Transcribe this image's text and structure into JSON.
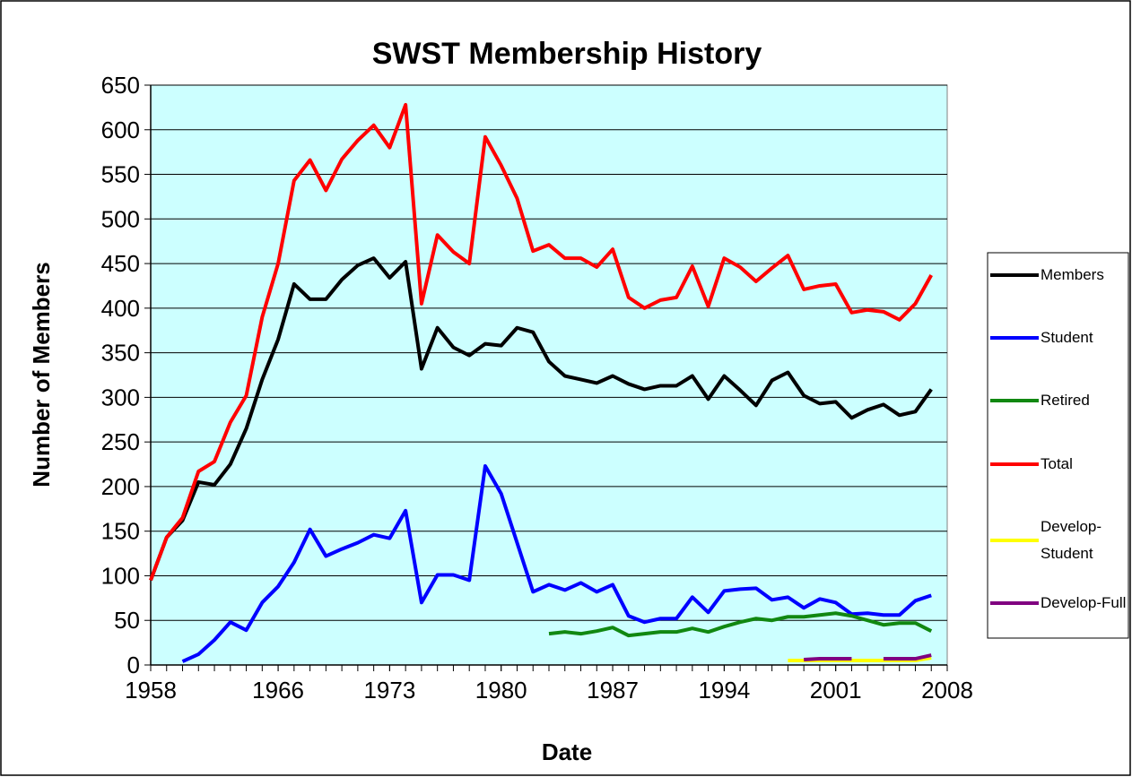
{
  "chart_data": {
    "type": "line",
    "title": "SWST Membership History",
    "x_label": "Date",
    "y_label": "Number of Members",
    "x": [
      1958,
      1959,
      1960,
      1961,
      1962,
      1963,
      1964,
      1965,
      1966,
      1967,
      1968,
      1969,
      1970,
      1971,
      1972,
      1973,
      1974,
      1975,
      1976,
      1977,
      1978,
      1979,
      1980,
      1981,
      1982,
      1983,
      1984,
      1985,
      1986,
      1987,
      1988,
      1989,
      1990,
      1991,
      1992,
      1993,
      1994,
      1995,
      1996,
      1997,
      1998,
      1999,
      2000,
      2001,
      2002,
      2003,
      2004,
      2005,
      2006,
      2007
    ],
    "xlim": [
      1958,
      2008
    ],
    "xticks": [
      1958,
      1966,
      1973,
      1980,
      1987,
      1994,
      2001,
      2008
    ],
    "ylim": [
      0,
      650
    ],
    "yticks": [
      0,
      50,
      100,
      150,
      200,
      250,
      300,
      350,
      400,
      450,
      500,
      550,
      600,
      650
    ],
    "grid": true,
    "series": [
      {
        "name": "Members",
        "color": "#000000",
        "values": [
          95,
          143,
          162,
          205,
          202,
          225,
          265,
          320,
          365,
          427,
          410,
          410,
          432,
          448,
          456,
          434,
          452,
          332,
          378,
          356,
          347,
          360,
          358,
          378,
          373,
          340,
          324,
          320,
          316,
          324,
          315,
          309,
          313,
          313,
          324,
          298,
          324,
          308,
          291,
          319,
          328,
          302,
          293,
          295,
          277,
          286,
          292,
          280,
          284,
          309
        ]
      },
      {
        "name": "Student",
        "color": "#0000ff",
        "values": [
          null,
          null,
          4,
          12,
          28,
          48,
          39,
          70,
          88,
          115,
          152,
          122,
          130,
          137,
          146,
          142,
          173,
          70,
          101,
          101,
          95,
          223,
          192,
          137,
          82,
          90,
          84,
          92,
          82,
          90,
          55,
          48,
          52,
          52,
          76,
          59,
          83,
          85,
          86,
          73,
          76,
          64,
          74,
          70,
          57,
          58,
          56,
          56,
          72,
          78
        ]
      },
      {
        "name": "Retired",
        "color": "#118811",
        "values": [
          null,
          null,
          null,
          null,
          null,
          null,
          null,
          null,
          null,
          null,
          null,
          null,
          null,
          null,
          null,
          null,
          null,
          null,
          null,
          null,
          null,
          null,
          null,
          null,
          null,
          35,
          37,
          35,
          38,
          42,
          33,
          35,
          37,
          37,
          41,
          37,
          43,
          48,
          52,
          50,
          54,
          54,
          56,
          58,
          55,
          50,
          45,
          47,
          47,
          38
        ]
      },
      {
        "name": "Total",
        "color": "#ff0000",
        "values": [
          95,
          143,
          165,
          217,
          228,
          272,
          302,
          390,
          450,
          543,
          566,
          532,
          567,
          588,
          605,
          580,
          628,
          405,
          482,
          463,
          450,
          592,
          560,
          523,
          464,
          471,
          456,
          456,
          446,
          466,
          412,
          400,
          409,
          412,
          447,
          402,
          456,
          446,
          430,
          445,
          459,
          421,
          425,
          427,
          395,
          398,
          396,
          387,
          405,
          437
        ]
      },
      {
        "name": "Develop-Student",
        "color": "#ffff00",
        "values": [
          null,
          null,
          null,
          null,
          null,
          null,
          null,
          null,
          null,
          null,
          null,
          null,
          null,
          null,
          null,
          null,
          null,
          null,
          null,
          null,
          null,
          null,
          null,
          null,
          null,
          null,
          null,
          null,
          null,
          null,
          null,
          null,
          null,
          null,
          null,
          null,
          null,
          null,
          null,
          null,
          5,
          5,
          5,
          5,
          5,
          5,
          5,
          5,
          5,
          8
        ]
      },
      {
        "name": "Develop-Full",
        "color": "#800080",
        "values": [
          null,
          null,
          null,
          null,
          null,
          null,
          null,
          null,
          null,
          null,
          null,
          null,
          null,
          null,
          null,
          null,
          null,
          null,
          null,
          null,
          null,
          null,
          null,
          null,
          null,
          null,
          null,
          null,
          null,
          null,
          null,
          null,
          null,
          null,
          null,
          null,
          null,
          null,
          null,
          null,
          null,
          6,
          7,
          7,
          7,
          null,
          7,
          7,
          7,
          11
        ]
      }
    ]
  }
}
